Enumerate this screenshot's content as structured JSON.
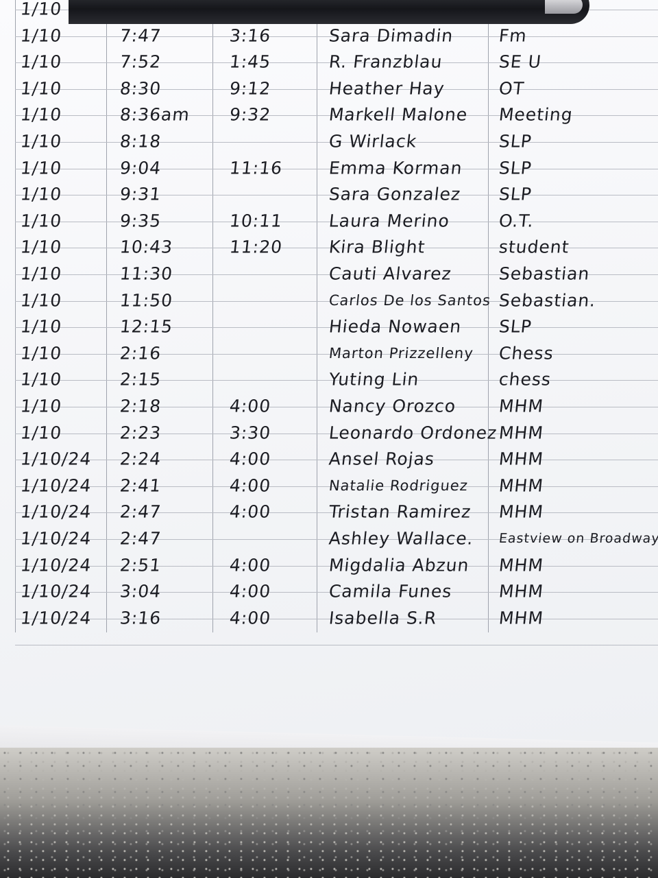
{
  "sheet": {
    "rows": [
      [
        "1/10",
        null,
        null,
        null,
        null
      ],
      [
        "1/10",
        "7:47",
        "3:16",
        "Sara Dimadin",
        "Fm"
      ],
      [
        "1/10",
        "7:52",
        "1:45",
        "R. Franzblau",
        "SE U"
      ],
      [
        "1/10",
        "8:30",
        "9:12",
        "Heather Hay",
        "OT"
      ],
      [
        "1/10",
        "8:36am",
        "9:32",
        "Markell Malone",
        "Meeting"
      ],
      [
        "1/10",
        "8:18",
        null,
        "G Wirlack",
        "SLP"
      ],
      [
        "1/10",
        "9:04",
        "11:16",
        "Emma Korman",
        "SLP"
      ],
      [
        "1/10",
        "9:31",
        null,
        "Sara Gonzalez",
        "SLP"
      ],
      [
        "1/10",
        "9:35",
        "10:11",
        "Laura Merino",
        "O.T."
      ],
      [
        "1/10",
        "10:43",
        "11:20",
        "Kira Blight",
        "student"
      ],
      [
        "1/10",
        "11:30",
        null,
        "Cauti Alvarez",
        "Sebastian"
      ],
      [
        "1/10",
        "11:50",
        null,
        "Carlos De los Santos",
        "Sebastian."
      ],
      [
        "1/10",
        "12:15",
        null,
        "Hieda Nowaen",
        "SLP"
      ],
      [
        "1/10",
        "2:16",
        null,
        "Marton Prizzelleny",
        "Chess"
      ],
      [
        "1/10",
        "2:15",
        null,
        "Yuting Lin",
        "chess"
      ],
      [
        "1/10",
        "2:18",
        "4:00",
        "Nancy Orozco",
        "MHM"
      ],
      [
        "1/10",
        "2:23",
        "3:30",
        "Leonardo Ordonez",
        "MHM"
      ],
      [
        "1/10/24",
        "2:24",
        "4:00",
        "Ansel Rojas",
        "MHM"
      ],
      [
        "1/10/24",
        "2:41",
        "4:00",
        "Natalie Rodriguez",
        "MHM"
      ],
      [
        "1/10/24",
        "2:47",
        "4:00",
        "Tristan Ramirez",
        "MHM"
      ],
      [
        "1/10/24",
        "2:47",
        null,
        "Ashley Wallace.",
        "Eastview on Broadway"
      ],
      [
        "1/10/24",
        "2:51",
        "4:00",
        "Migdalia Abzun",
        "MHM"
      ],
      [
        "1/10/24",
        "3:04",
        "4:00",
        "Camila Funes",
        "MHM"
      ],
      [
        "1/10/24",
        "3:16",
        "4:00",
        "Isabella S.R",
        "MHM"
      ]
    ]
  }
}
